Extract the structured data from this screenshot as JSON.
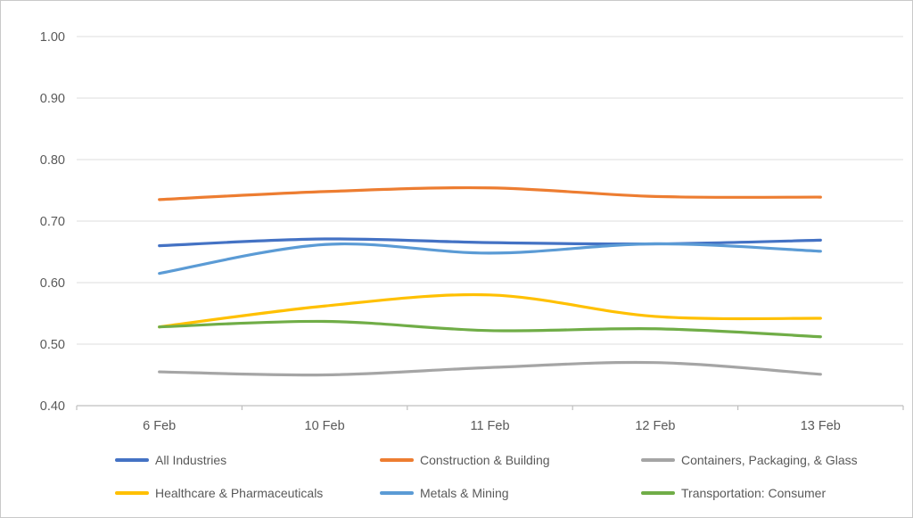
{
  "chart_data": {
    "type": "line",
    "title": "",
    "xlabel": "",
    "ylabel": "",
    "line_style": "smooth",
    "grid": true,
    "legend_position": "bottom",
    "ylim": [
      0.4,
      1.0
    ],
    "y_tick_step": 0.1,
    "y_tick_labels": [
      "0.40",
      "0.50",
      "0.60",
      "0.70",
      "0.80",
      "0.90",
      "1.00"
    ],
    "categories": [
      "6 Feb",
      "10 Feb",
      "11 Feb",
      "12 Feb",
      "13 Feb"
    ],
    "series": [
      {
        "name": "All Industries",
        "color": "#4472C4",
        "values": [
          0.66,
          0.671,
          0.665,
          0.663,
          0.669
        ]
      },
      {
        "name": "Construction & Building",
        "color": "#ED7D31",
        "values": [
          0.735,
          0.748,
          0.754,
          0.74,
          0.739
        ]
      },
      {
        "name": "Containers, Packaging, & Glass",
        "color": "#A5A5A5",
        "values": [
          0.455,
          0.45,
          0.462,
          0.47,
          0.451
        ]
      },
      {
        "name": "Healthcare & Pharmaceuticals",
        "color": "#FFC000",
        "values": [
          0.528,
          0.562,
          0.58,
          0.545,
          0.542
        ]
      },
      {
        "name": "Metals & Mining",
        "color": "#5B9BD5",
        "values": [
          0.615,
          0.662,
          0.648,
          0.663,
          0.651
        ]
      },
      {
        "name": "Transportation: Consumer",
        "color": "#70AD47",
        "values": [
          0.528,
          0.537,
          0.522,
          0.525,
          0.512
        ]
      }
    ],
    "colors": {
      "axis_text": "#595959",
      "gridline": "#DDDDDD",
      "axis_line": "#BFBFBF",
      "background": "#FFFFFF"
    }
  }
}
